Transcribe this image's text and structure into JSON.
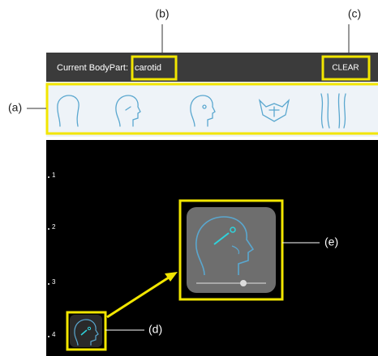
{
  "annotations": {
    "a": "(a)",
    "b": "(b)",
    "c": "(c)",
    "d": "(d)",
    "e": "(e)"
  },
  "header": {
    "label": "Current BodyPart:",
    "body_part": "carotid",
    "clear_button": "CLEAR"
  },
  "ruler": {
    "ticks": [
      "1",
      "2",
      "3",
      "4"
    ]
  }
}
